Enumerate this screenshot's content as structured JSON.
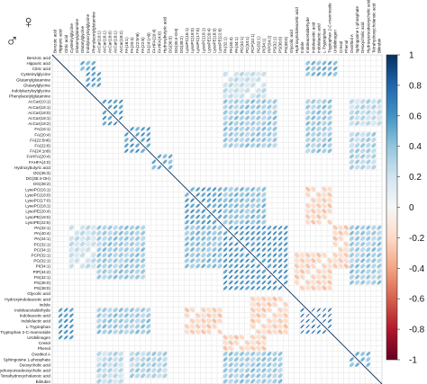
{
  "chart_data": {
    "type": "heatmap",
    "subtype": "correlation-matrix-ellipse",
    "title": "",
    "corner_symbols": {
      "upper": "♀",
      "lower": "♂"
    },
    "labels": [
      "Benzoic acid",
      "Hippuric acid",
      "Citric acid",
      "Cysteinylglycine",
      "Glutamylglutamine",
      "Glutarylglycine",
      "Indolylacryloylglycine",
      "Phenylacetylglutamine",
      "AcCar(10:1)",
      "AcCar(16:1)",
      "AcCar(18:0)",
      "AcCar(18:1)",
      "AcCar(18:2)",
      "FA(16:1)",
      "FA(20:4)",
      "FA(22:5n6)",
      "FA(22:6)",
      "FA(24:1n9)",
      "FAHFA(20:4)",
      "FAHFA(4:0)",
      "Hydroxybutyric acid",
      "DG(36:3)",
      "DG(35:4-OH)",
      "DG(38:2)",
      "LysoPC(16:1)",
      "LysoPC(18:0)",
      "LysoPC(17:0)",
      "LysoPC(18:1)",
      "LysoPE(20:4)",
      "LysoPE(18:0)",
      "LysoPE(22:6)",
      "PA(32:1)",
      "PA(40:4)",
      "PA(34:1)",
      "PC(32:1)",
      "PC(34:1)",
      "PCP(32:1)",
      "PG(32:1)",
      "PI(34:1)",
      "PIP(34:2)",
      "PS(32:1)",
      "PS(36:0)",
      "PS(38:0)",
      "Glycolic acid",
      "Hydroxyindoleacetic acid",
      "Indole",
      "Indoleacetaldehyde",
      "Indoleacetic acid",
      "Indolelactic acid",
      "L-Tryptophan",
      "Tryptophan 2-C-mannoside",
      "Urobilinogen",
      "Cresol",
      "Phenol",
      "Ovothiol A",
      "Sphingosine 1-phosphate",
      "Deoxycholic acid",
      "Hydroxyursodeoxycholic acid",
      "Tetrahydroxycholanoic acid",
      "Bilirubin"
    ],
    "colorbar": {
      "min": -1,
      "max": 1,
      "ticks": [
        "1",
        "0.8",
        "0.6",
        "0.4",
        "0.2",
        "0",
        "-0.2",
        "-0.4",
        "-0.6",
        "-0.8",
        "-1"
      ],
      "colors": [
        "#67001f",
        "#b2182b",
        "#d6604d",
        "#f4a582",
        "#fddbc7",
        "#f7f7f7",
        "#d1e5f0",
        "#92c5de",
        "#4393c3",
        "#2166ac",
        "#053061"
      ]
    },
    "diagonal_value": 1,
    "blocks": [
      {
        "rows": [
          1,
          2
        ],
        "cols": [
          5,
          6,
          7
        ],
        "value": 0.5
      },
      {
        "rows": [
          3,
          4,
          5
        ],
        "cols": [
          6,
          7,
          8
        ],
        "value": 0.55
      },
      {
        "rows": [
          8,
          9,
          10,
          11,
          12
        ],
        "cols": [
          9,
          10,
          11,
          12
        ],
        "value": 0.6
      },
      {
        "rows": [
          13,
          14,
          15,
          16,
          17
        ],
        "cols": [
          13,
          14,
          15,
          16,
          17
        ],
        "value": 0.55
      },
      {
        "rows": [
          18,
          19,
          20
        ],
        "cols": [
          18,
          19,
          20,
          21
        ],
        "value": 0.45
      },
      {
        "rows": [
          24,
          25,
          26,
          27,
          28,
          29,
          30
        ],
        "cols": [
          24,
          25,
          26,
          27,
          28,
          29,
          30
        ],
        "value": 0.55
      },
      {
        "rows": [
          31,
          32,
          33,
          34,
          35,
          36,
          37,
          38,
          39,
          40,
          41,
          42
        ],
        "cols": [
          31,
          32,
          33,
          34,
          35,
          36,
          37,
          38,
          39,
          40,
          41,
          42
        ],
        "value": 0.6
      },
      {
        "rows": [
          46,
          47,
          48,
          49,
          50
        ],
        "cols": [
          45,
          46,
          47,
          48,
          49,
          50
        ],
        "value": 0.75
      },
      {
        "rows": [
          54,
          55,
          56
        ],
        "cols": [
          54,
          55,
          56,
          57
        ],
        "value": 0.45
      },
      {
        "rows": [
          8,
          9,
          10,
          11,
          12,
          13,
          14,
          15,
          16
        ],
        "cols": [
          31,
          32,
          33,
          34,
          35,
          36,
          37,
          38,
          39,
          40
        ],
        "value": 0.35
      },
      {
        "rows": [
          31,
          32,
          33,
          34,
          35,
          36,
          37,
          38,
          39,
          40
        ],
        "cols": [
          8,
          9,
          10,
          11,
          12,
          13,
          14,
          15,
          16
        ],
        "value": 0.35
      },
      {
        "rows": [
          24,
          25,
          26,
          27,
          28,
          29,
          30
        ],
        "cols": [
          31,
          32,
          33,
          34,
          35,
          36,
          37,
          38
        ],
        "value": 0.4
      },
      {
        "rows": [
          31,
          32,
          33,
          34,
          35,
          36,
          37,
          38
        ],
        "cols": [
          24,
          25,
          26,
          27,
          28,
          29,
          30
        ],
        "value": 0.4
      },
      {
        "rows": [
          46,
          47,
          48,
          49,
          50
        ],
        "cols": [
          8,
          9,
          10,
          11,
          12,
          13,
          14,
          15,
          16,
          17
        ],
        "value": 0.35
      },
      {
        "rows": [
          8,
          9,
          10,
          11,
          12,
          13,
          14,
          15,
          16,
          17
        ],
        "cols": [
          46,
          47,
          48,
          49,
          50
        ],
        "value": 0.35
      },
      {
        "rows": [
          1,
          2,
          3
        ],
        "cols": [
          46,
          47,
          48,
          49,
          50,
          51
        ],
        "value": 0.45
      },
      {
        "rows": [
          46,
          47,
          48,
          49,
          50,
          51
        ],
        "cols": [
          1,
          2,
          3
        ],
        "value": 0.6
      },
      {
        "rows": [
          54,
          55,
          56,
          57,
          58,
          59
        ],
        "cols": [
          31,
          32,
          33,
          34,
          35,
          36,
          37,
          38,
          39,
          40,
          41
        ],
        "value": 0.35
      },
      {
        "rows": [
          31,
          32,
          33,
          34,
          35,
          36,
          37,
          38,
          39,
          40,
          41
        ],
        "cols": [
          54,
          55,
          56,
          57,
          58,
          59
        ],
        "value": 0.35
      },
      {
        "rows": [
          14,
          15,
          16,
          17,
          18,
          19,
          20
        ],
        "cols": [
          54,
          55,
          56,
          57,
          58
        ],
        "value": 0.3
      },
      {
        "rows": [
          54,
          55,
          56,
          57,
          58
        ],
        "cols": [
          14,
          15,
          16,
          17,
          18,
          19,
          20
        ],
        "value": 0.3
      },
      {
        "rows": [
          24,
          25,
          26,
          27,
          28,
          29,
          30
        ],
        "cols": [
          46,
          47,
          48,
          49,
          50
        ],
        "value": -0.2
      },
      {
        "rows": [
          46,
          47,
          48,
          49,
          50
        ],
        "cols": [
          24,
          25,
          26,
          27,
          28,
          29,
          30
        ],
        "value": -0.2
      },
      {
        "rows": [
          36,
          37,
          38,
          39,
          40,
          41,
          42
        ],
        "cols": [
          44,
          45,
          46,
          47,
          48,
          49,
          50
        ],
        "value": -0.2
      },
      {
        "rows": [
          44,
          45,
          46,
          47,
          48,
          49,
          50
        ],
        "cols": [
          36,
          37,
          38,
          39,
          40,
          41,
          42
        ],
        "value": -0.2
      },
      {
        "rows": [
          51,
          52,
          53
        ],
        "cols": [
          31,
          32,
          33,
          34,
          35,
          36,
          37,
          38
        ],
        "value": -0.2
      },
      {
        "rows": [
          31,
          32,
          33,
          34,
          35,
          36,
          37,
          38
        ],
        "cols": [
          51,
          52,
          53
        ],
        "value": -0.2
      },
      {
        "rows": [
          3,
          4,
          5,
          6,
          7
        ],
        "cols": [
          31,
          32,
          33,
          34,
          35,
          36,
          37,
          38
        ],
        "value": 0.2
      },
      {
        "rows": [
          31,
          32,
          33,
          34,
          35,
          36,
          37,
          38
        ],
        "cols": [
          3,
          4,
          5,
          6,
          7
        ],
        "value": 0.2
      },
      {
        "rows": [
          8,
          9,
          10,
          11,
          12
        ],
        "cols": [
          54,
          55,
          56,
          57,
          58,
          59
        ],
        "value": 0.25
      },
      {
        "rows": [
          54,
          55,
          56,
          57,
          58,
          59
        ],
        "cols": [
          8,
          9,
          10,
          11,
          12
        ],
        "value": 0.25
      }
    ]
  }
}
